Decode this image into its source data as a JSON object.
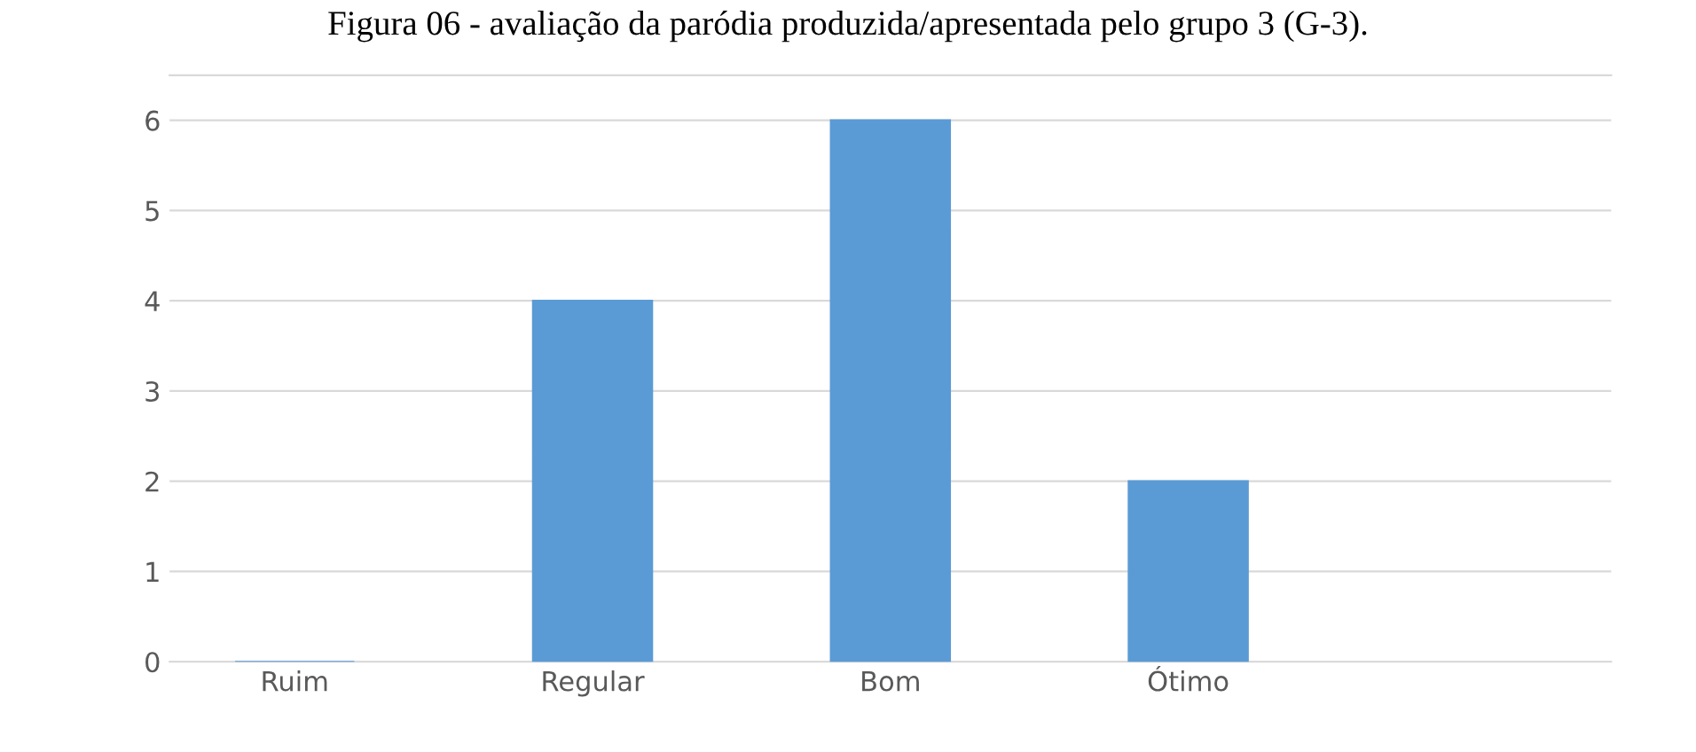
{
  "chart_data": {
    "type": "bar",
    "title": "Figura 06 - avaliação da paródia produzida/apresentada pelo grupo 3 (G-3).",
    "categories": [
      "Ruim",
      "Regular",
      "Bom",
      "Ótimo",
      null
    ],
    "values": [
      0,
      4,
      6,
      2,
      null
    ],
    "color": "#5b9bd5",
    "ylim": [
      0,
      6.5
    ],
    "yticks": [
      0,
      1,
      2,
      3,
      4,
      5,
      6
    ],
    "grid": "y"
  }
}
